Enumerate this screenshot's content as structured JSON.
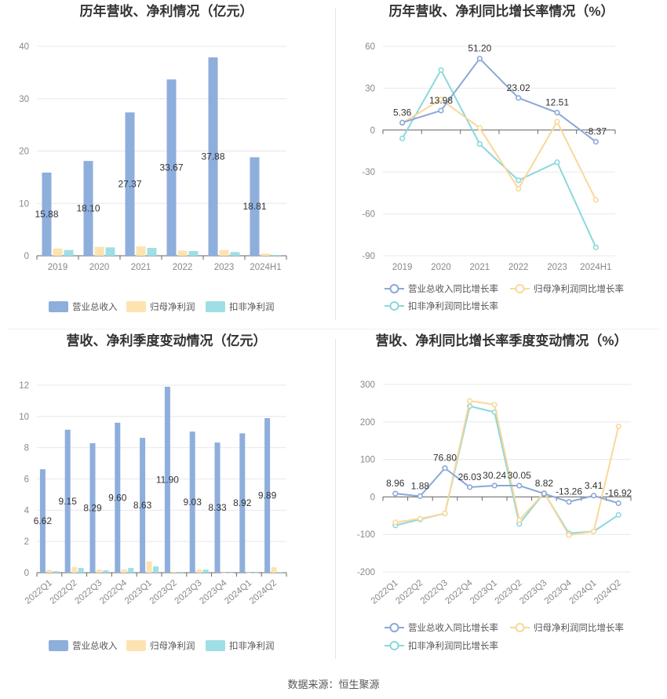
{
  "footer": {
    "source": "数据来源：恒生聚源"
  },
  "colors": {
    "revenue": "#8eaedc",
    "net": "#fde3b0",
    "deducted": "#9ddfe4",
    "line_revenue": "#8ba8d8",
    "line_net": "#f9d89a",
    "line_deducted": "#8bd8dc",
    "grid": "#e8e8ee",
    "axis_text": "#888888",
    "label": "#333333"
  },
  "chart_data": [
    {
      "type": "bar",
      "title": "历年营收、净利情况（亿元）",
      "categories": [
        "2019",
        "2020",
        "2021",
        "2022",
        "2023",
        "2024H1"
      ],
      "ylim": [
        0,
        40
      ],
      "yticks": [
        0,
        10,
        20,
        30,
        40
      ],
      "grid": true,
      "legend_position": "bottom",
      "series": [
        {
          "name": "营业总收入",
          "values": [
            15.88,
            18.1,
            27.37,
            33.67,
            37.88,
            18.81
          ],
          "labels": [
            "15.88",
            "18.10",
            "27.37",
            "33.67",
            "37.88",
            "18.81"
          ]
        },
        {
          "name": "归母净利润",
          "values": [
            1.4,
            1.7,
            1.8,
            1.0,
            1.1,
            0.4
          ]
        },
        {
          "name": "扣非净利润",
          "values": [
            1.1,
            1.6,
            1.5,
            0.9,
            0.7,
            0.15
          ]
        }
      ]
    },
    {
      "type": "line",
      "title": "历年营收、净利同比增长率情况（%）",
      "categories": [
        "2019",
        "2020",
        "2021",
        "2022",
        "2023",
        "2024H1"
      ],
      "ylim": [
        -90,
        60
      ],
      "yticks": [
        60,
        30,
        0,
        -30,
        -60,
        -90
      ],
      "grid": true,
      "legend_position": "bottom",
      "series": [
        {
          "name": "营业总收入同比增长率",
          "values": [
            5.36,
            13.98,
            51.2,
            23.02,
            12.51,
            -8.37
          ],
          "labels": [
            "5.36",
            "13.98",
            "51.20",
            "23.02",
            "12.51",
            "-8.37"
          ]
        },
        {
          "name": "归母净利润同比增长率",
          "values": [
            5,
            22,
            1.5,
            -42,
            6,
            -50
          ]
        },
        {
          "name": "扣非净利润同比增长率",
          "values": [
            -6,
            43,
            -10,
            -36,
            -23,
            -84
          ]
        }
      ]
    },
    {
      "type": "bar",
      "title": "营收、净利季度变动情况（亿元）",
      "categories": [
        "2022Q1",
        "2022Q2",
        "2022Q3",
        "2022Q4",
        "2023Q1",
        "2023Q2",
        "2023Q3",
        "2023Q4",
        "2024Q1",
        "2024Q2"
      ],
      "ylim": [
        0,
        12
      ],
      "yticks": [
        0,
        2,
        4,
        6,
        8,
        10,
        12
      ],
      "grid": true,
      "legend_position": "bottom",
      "series": [
        {
          "name": "营业总收入",
          "values": [
            6.62,
            9.15,
            8.29,
            9.6,
            8.63,
            11.9,
            9.03,
            8.33,
            8.92,
            9.89
          ],
          "labels": [
            "6.62",
            "9.15",
            "8.29",
            "9.60",
            "8.63",
            "11.90",
            "9.03",
            "8.33",
            "8.92",
            "9.89"
          ]
        },
        {
          "name": "归母净利润",
          "values": [
            0.18,
            0.36,
            0.2,
            0.22,
            0.73,
            0.06,
            0.2,
            -0.02,
            -0.02,
            0.35
          ]
        },
        {
          "name": "扣非净利润",
          "values": [
            0.1,
            0.3,
            0.15,
            0.3,
            0.4,
            0.05,
            0.2,
            -0.03,
            -0.03,
            0.05
          ]
        }
      ]
    },
    {
      "type": "line",
      "title": "营收、净利同比增长率季度变动情况（%）",
      "categories": [
        "2022Q1",
        "2022Q2",
        "2022Q3",
        "2022Q4",
        "2023Q1",
        "2023Q2",
        "2023Q3",
        "2023Q4",
        "2024Q1",
        "2024Q2"
      ],
      "ylim": [
        -200,
        300
      ],
      "yticks": [
        300,
        200,
        100,
        0,
        -100,
        -200
      ],
      "grid": true,
      "legend_position": "bottom",
      "series": [
        {
          "name": "营业总收入同比增长率",
          "values": [
            8.96,
            1.88,
            76.8,
            26.03,
            30.24,
            30.05,
            8.82,
            -13.26,
            3.41,
            -16.92
          ],
          "labels": [
            "8.96",
            "1.88",
            "76.80",
            "26.03",
            "30.24",
            "30.05",
            "8.82",
            "-13.26",
            "3.41",
            "-16.92"
          ]
        },
        {
          "name": "归母净利润同比增长率",
          "values": [
            -68,
            -58,
            -44,
            256,
            246,
            -62,
            11,
            -102,
            -92,
            188
          ]
        },
        {
          "name": "扣非净利润同比增长率",
          "values": [
            -76,
            -60,
            -44,
            242,
            226,
            -72,
            11,
            -97,
            -92,
            -48
          ]
        }
      ]
    }
  ]
}
